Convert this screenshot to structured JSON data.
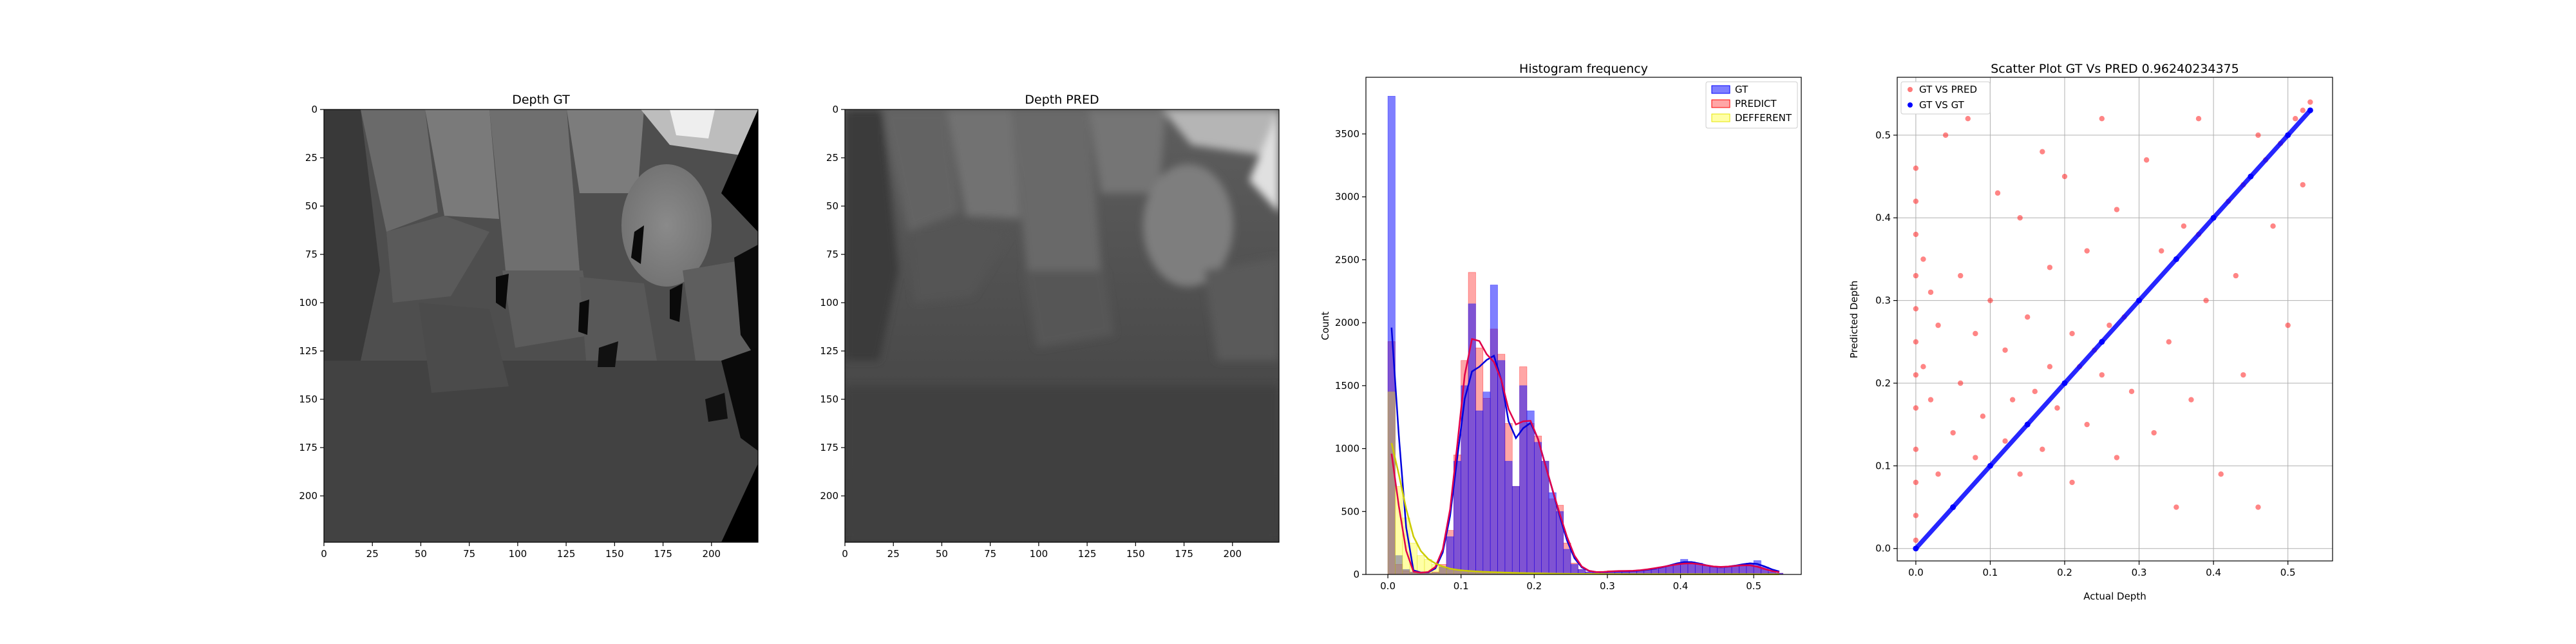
{
  "chart_data": [
    {
      "type": "heatmap",
      "title": "Depth GT",
      "x_ticks": [
        0,
        25,
        50,
        75,
        100,
        125,
        150,
        175,
        200
      ],
      "y_ticks": [
        0,
        25,
        50,
        75,
        100,
        125,
        150,
        175,
        200
      ],
      "xlim": [
        0,
        224
      ],
      "ylim": [
        224,
        0
      ],
      "colormap": "gray"
    },
    {
      "type": "heatmap",
      "title": "Depth PRED",
      "x_ticks": [
        0,
        25,
        50,
        75,
        100,
        125,
        150,
        175,
        200
      ],
      "y_ticks": [
        0,
        25,
        50,
        75,
        100,
        125,
        150,
        175,
        200
      ],
      "xlim": [
        0,
        224
      ],
      "ylim": [
        224,
        0
      ],
      "colormap": "gray"
    },
    {
      "type": "bar",
      "title": "Histogram frequency",
      "xlabel": "",
      "ylabel": "Count",
      "xlim": [
        -0.03,
        0.565
      ],
      "ylim": [
        0,
        3950
      ],
      "x_ticks": [
        0.0,
        0.1,
        0.2,
        0.3,
        0.4,
        0.5
      ],
      "y_ticks": [
        0,
        500,
        1000,
        1500,
        2000,
        2500,
        3000,
        3500
      ],
      "legend": [
        "GT",
        "PREDICT",
        "DEFFERENT"
      ],
      "legend_position": "top-right",
      "bin_width": 0.01,
      "bin_starts": [
        0.0,
        0.01,
        0.02,
        0.03,
        0.04,
        0.05,
        0.06,
        0.07,
        0.08,
        0.09,
        0.1,
        0.11,
        0.12,
        0.13,
        0.14,
        0.15,
        0.16,
        0.17,
        0.18,
        0.19,
        0.2,
        0.21,
        0.22,
        0.23,
        0.24,
        0.25,
        0.26,
        0.27,
        0.28,
        0.29,
        0.3,
        0.31,
        0.32,
        0.33,
        0.34,
        0.35,
        0.36,
        0.37,
        0.38,
        0.39,
        0.4,
        0.41,
        0.42,
        0.43,
        0.44,
        0.45,
        0.46,
        0.47,
        0.48,
        0.49,
        0.5,
        0.51,
        0.52,
        0.53
      ],
      "series": [
        {
          "name": "GT",
          "color": "#0000ff",
          "values": [
            3800,
            150,
            40,
            20,
            10,
            10,
            15,
            60,
            300,
            900,
            1500,
            2150,
            1300,
            1450,
            2300,
            1700,
            900,
            700,
            1500,
            1300,
            1050,
            900,
            650,
            500,
            200,
            80,
            40,
            20,
            15,
            15,
            25,
            30,
            20,
            25,
            30,
            40,
            40,
            60,
            70,
            80,
            120,
            100,
            90,
            70,
            60,
            50,
            60,
            70,
            80,
            90,
            110,
            60,
            30,
            10
          ]
        },
        {
          "name": "PREDICT",
          "color": "#ff0000",
          "values": [
            1850,
            80,
            30,
            15,
            10,
            12,
            20,
            80,
            350,
            950,
            1700,
            2400,
            1800,
            1400,
            1950,
            1750,
            1200,
            700,
            1650,
            1200,
            1100,
            900,
            600,
            550,
            250,
            90,
            40,
            20,
            15,
            15,
            30,
            30,
            25,
            30,
            30,
            40,
            50,
            60,
            70,
            80,
            90,
            95,
            85,
            70,
            60,
            55,
            60,
            70,
            75,
            80,
            70,
            40,
            20,
            10
          ]
        },
        {
          "name": "DEFFERENT",
          "color": "#ffff00",
          "values": [
            1450,
            700,
            450,
            250,
            150,
            120,
            80,
            60,
            40,
            35,
            30,
            25,
            22,
            20,
            18,
            16,
            14,
            12,
            10,
            10,
            8,
            8,
            6,
            6,
            5,
            5,
            4,
            4,
            3,
            3,
            3,
            2,
            2,
            2,
            2,
            2,
            2,
            2,
            2,
            2,
            2,
            2,
            2,
            2,
            2,
            2,
            2,
            2,
            2,
            2,
            2,
            1,
            1,
            1
          ]
        }
      ]
    },
    {
      "type": "scatter",
      "title": "Scatter Plot GT Vs PRED 0.96240234375",
      "xlabel": "Actual Depth",
      "ylabel": "Predicted Depth",
      "xlim": [
        -0.025,
        0.56
      ],
      "ylim": [
        -0.015,
        0.57
      ],
      "x_ticks": [
        0.0,
        0.1,
        0.2,
        0.3,
        0.4,
        0.5
      ],
      "y_ticks": [
        0.0,
        0.1,
        0.2,
        0.3,
        0.4,
        0.5
      ],
      "grid": true,
      "legend": [
        "GT VS PRED",
        "GT VS GT"
      ],
      "legend_position": "top-left",
      "series": [
        {
          "name": "GT VS PRED",
          "color": "#ff2020",
          "points": [
            [
              0.0,
              0.46
            ],
            [
              0.0,
              0.42
            ],
            [
              0.0,
              0.38
            ],
            [
              0.0,
              0.33
            ],
            [
              0.0,
              0.29
            ],
            [
              0.0,
              0.25
            ],
            [
              0.0,
              0.21
            ],
            [
              0.0,
              0.17
            ],
            [
              0.0,
              0.12
            ],
            [
              0.0,
              0.08
            ],
            [
              0.0,
              0.04
            ],
            [
              0.0,
              0.01
            ],
            [
              0.01,
              0.35
            ],
            [
              0.01,
              0.22
            ],
            [
              0.02,
              0.31
            ],
            [
              0.02,
              0.18
            ],
            [
              0.03,
              0.27
            ],
            [
              0.03,
              0.09
            ],
            [
              0.04,
              0.5
            ],
            [
              0.05,
              0.14
            ],
            [
              0.06,
              0.2
            ],
            [
              0.06,
              0.33
            ],
            [
              0.07,
              0.52
            ],
            [
              0.08,
              0.11
            ],
            [
              0.08,
              0.26
            ],
            [
              0.09,
              0.16
            ],
            [
              0.1,
              0.1
            ],
            [
              0.1,
              0.3
            ],
            [
              0.11,
              0.43
            ],
            [
              0.12,
              0.13
            ],
            [
              0.12,
              0.24
            ],
            [
              0.13,
              0.18
            ],
            [
              0.14,
              0.4
            ],
            [
              0.14,
              0.09
            ],
            [
              0.15,
              0.15
            ],
            [
              0.15,
              0.28
            ],
            [
              0.16,
              0.19
            ],
            [
              0.17,
              0.48
            ],
            [
              0.17,
              0.12
            ],
            [
              0.18,
              0.22
            ],
            [
              0.18,
              0.34
            ],
            [
              0.19,
              0.17
            ],
            [
              0.2,
              0.2
            ],
            [
              0.2,
              0.45
            ],
            [
              0.21,
              0.26
            ],
            [
              0.21,
              0.08
            ],
            [
              0.22,
              0.22
            ],
            [
              0.23,
              0.36
            ],
            [
              0.23,
              0.15
            ],
            [
              0.24,
              0.24
            ],
            [
              0.25,
              0.52
            ],
            [
              0.25,
              0.21
            ],
            [
              0.26,
              0.27
            ],
            [
              0.27,
              0.11
            ],
            [
              0.27,
              0.41
            ],
            [
              0.28,
              0.28
            ],
            [
              0.29,
              0.19
            ],
            [
              0.3,
              0.3
            ],
            [
              0.31,
              0.47
            ],
            [
              0.32,
              0.14
            ],
            [
              0.33,
              0.36
            ],
            [
              0.34,
              0.25
            ],
            [
              0.35,
              0.05
            ],
            [
              0.36,
              0.39
            ],
            [
              0.37,
              0.18
            ],
            [
              0.38,
              0.38
            ],
            [
              0.38,
              0.52
            ],
            [
              0.39,
              0.3
            ],
            [
              0.4,
              0.4
            ],
            [
              0.41,
              0.09
            ],
            [
              0.42,
              0.42
            ],
            [
              0.43,
              0.33
            ],
            [
              0.44,
              0.44
            ],
            [
              0.44,
              0.21
            ],
            [
              0.45,
              0.45
            ],
            [
              0.46,
              0.5
            ],
            [
              0.46,
              0.05
            ],
            [
              0.47,
              0.47
            ],
            [
              0.48,
              0.39
            ],
            [
              0.49,
              0.49
            ],
            [
              0.5,
              0.5
            ],
            [
              0.5,
              0.27
            ],
            [
              0.51,
              0.52
            ],
            [
              0.52,
              0.53
            ],
            [
              0.52,
              0.44
            ],
            [
              0.53,
              0.54
            ]
          ]
        },
        {
          "name": "GT VS GT",
          "color": "#0000ff",
          "points": [
            [
              0.0,
              0.0
            ],
            [
              0.05,
              0.05
            ],
            [
              0.1,
              0.1
            ],
            [
              0.15,
              0.15
            ],
            [
              0.2,
              0.2
            ],
            [
              0.25,
              0.25
            ],
            [
              0.3,
              0.3
            ],
            [
              0.35,
              0.35
            ],
            [
              0.4,
              0.4
            ],
            [
              0.45,
              0.45
            ],
            [
              0.5,
              0.5
            ],
            [
              0.53,
              0.53
            ]
          ]
        }
      ]
    }
  ]
}
